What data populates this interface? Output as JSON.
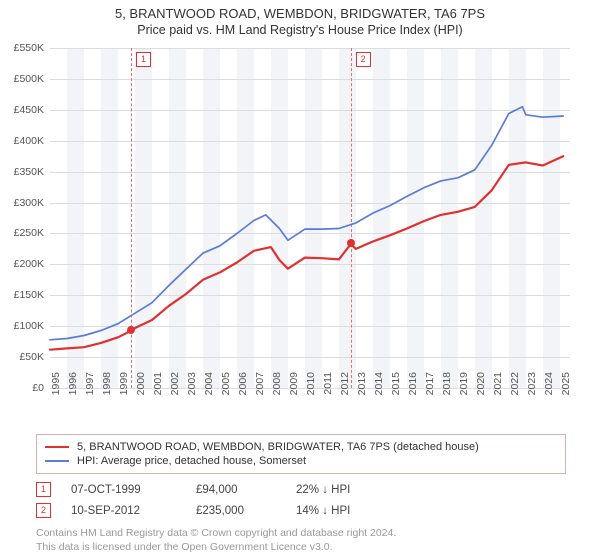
{
  "title_line1": "5, BRANTWOOD ROAD, WEMBDON, BRIDGWATER, TA6 7PS",
  "title_line2": "Price paid vs. HM Land Registry's House Price Index (HPI)",
  "chart": {
    "type": "line",
    "background_color": "#ffffff",
    "band_color": "#f2f4f7",
    "grid_color": "#d9dce0",
    "ylabel_prefix": "£",
    "ylabel_suffix": "K",
    "ylim": [
      0,
      550
    ],
    "ytick_step": 50,
    "xlim": [
      1995,
      2025.6
    ],
    "xticks": [
      1995,
      1996,
      1997,
      1998,
      1999,
      2000,
      2001,
      2002,
      2003,
      2004,
      2005,
      2006,
      2007,
      2008,
      2009,
      2010,
      2011,
      2012,
      2013,
      2014,
      2015,
      2016,
      2017,
      2018,
      2019,
      2020,
      2021,
      2022,
      2023,
      2024,
      2025
    ],
    "label_fontsize": 10.5,
    "series": {
      "property": {
        "color": "#e03030",
        "line_width": 2.2,
        "label": "5, BRANTWOOD ROAD, WEMBDON, BRIDGWATER, TA6 7PS (detached house)",
        "x": [
          1995,
          1996,
          1997,
          1998,
          1999,
          1999.8,
          2000,
          2001,
          2002,
          2003,
          2004,
          2005,
          2006,
          2007,
          2008,
          2008.5,
          2009,
          2010,
          2011,
          2012,
          2012.7,
          2013,
          2014,
          2015,
          2016,
          2017,
          2018,
          2019,
          2020,
          2021,
          2022,
          2023,
          2024,
          2025.2
        ],
        "y": [
          62,
          64,
          66,
          73,
          82,
          93,
          97,
          110,
          133,
          152,
          175,
          187,
          203,
          222,
          228,
          207,
          193,
          211,
          210,
          208,
          233,
          225,
          237,
          247,
          258,
          270,
          280,
          285,
          293,
          320,
          361,
          365,
          360,
          375
        ]
      },
      "hpi": {
        "color": "#5b7bd5",
        "line_width": 1.7,
        "label": "HPI: Average price, detached house, Somerset",
        "x": [
          1995,
          1996,
          1997,
          1998,
          1999,
          2000,
          2001,
          2002,
          2003,
          2004,
          2005,
          2006,
          2007,
          2007.7,
          2008.5,
          2009,
          2010,
          2011,
          2012,
          2013,
          2014,
          2015,
          2016,
          2017,
          2018,
          2019,
          2020,
          2021,
          2022,
          2022.8,
          2023,
          2024,
          2025.2
        ],
        "y": [
          78,
          80,
          85,
          93,
          104,
          121,
          138,
          166,
          192,
          218,
          230,
          250,
          271,
          280,
          258,
          239,
          257,
          257,
          258,
          267,
          283,
          295,
          310,
          324,
          335,
          340,
          353,
          393,
          444,
          455,
          442,
          438,
          440
        ]
      }
    },
    "markers": [
      {
        "n": "1",
        "x": 1999.77,
        "y": 94
      },
      {
        "n": "2",
        "x": 2012.69,
        "y": 235
      }
    ]
  },
  "legend": {
    "series1": "5, BRANTWOOD ROAD, WEMBDON, BRIDGWATER, TA6 7PS (detached house)",
    "series2": "HPI: Average price, detached house, Somerset"
  },
  "transactions": [
    {
      "n": "1",
      "date": "07-OCT-1999",
      "price": "£94,000",
      "delta": "22% ↓ HPI"
    },
    {
      "n": "2",
      "date": "10-SEP-2012",
      "price": "£235,000",
      "delta": "14% ↓ HPI"
    }
  ],
  "footer_line1": "Contains HM Land Registry data © Crown copyright and database right 2024.",
  "footer_line2": "This data is licensed under the Open Government Licence v3.0."
}
